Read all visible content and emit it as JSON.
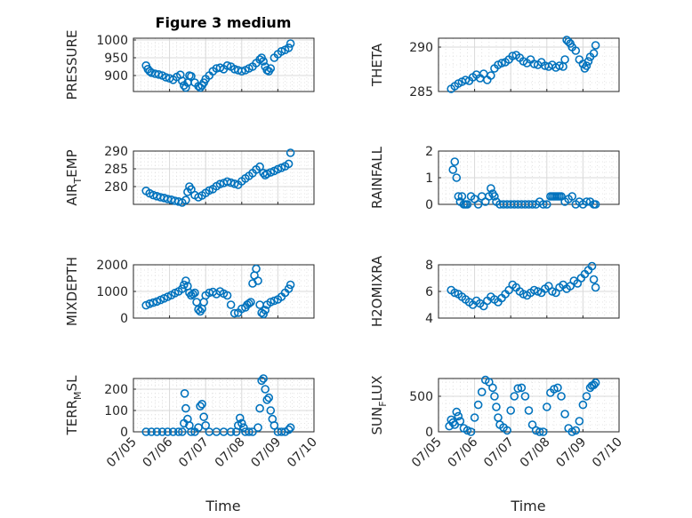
{
  "figure": {
    "title": "Figure 3 medium",
    "xlabel": "Time"
  },
  "chart_data": [
    {
      "type": "scatter",
      "title": "Figure 3 medium",
      "ylabel": "PRESSURE",
      "ylim": [
        855,
        1005
      ],
      "yticks": [
        900,
        950,
        1000
      ],
      "xlim": [
        0,
        5
      ],
      "xticks": [
        0,
        1,
        2,
        3,
        4,
        5
      ],
      "xticklabels": [
        "07/05",
        "07/06",
        "07/07",
        "07/08",
        "07/09",
        "07/10"
      ],
      "grid": true,
      "x": [
        0.35,
        0.4,
        0.45,
        0.5,
        0.6,
        0.7,
        0.8,
        0.9,
        1.0,
        1.1,
        1.2,
        1.3,
        1.35,
        1.4,
        1.45,
        1.5,
        1.55,
        1.6,
        1.7,
        1.8,
        1.85,
        1.9,
        1.95,
        2.0,
        2.1,
        2.2,
        2.3,
        2.4,
        2.5,
        2.6,
        2.7,
        2.8,
        2.9,
        3.0,
        3.1,
        3.2,
        3.3,
        3.4,
        3.5,
        3.55,
        3.6,
        3.65,
        3.7,
        3.75,
        3.8,
        3.9,
        4.0,
        4.1,
        4.2,
        4.3,
        4.35
      ],
      "y": [
        928,
        918,
        912,
        908,
        905,
        903,
        900,
        895,
        892,
        888,
        896,
        902,
        885,
        872,
        866,
        880,
        900,
        898,
        880,
        870,
        866,
        872,
        880,
        890,
        900,
        912,
        920,
        922,
        918,
        928,
        925,
        918,
        915,
        912,
        915,
        920,
        925,
        935,
        945,
        950,
        940,
        925,
        915,
        912,
        920,
        950,
        960,
        968,
        972,
        978,
        990
      ]
    },
    {
      "type": "scatter",
      "ylabel": "THETA",
      "ylim": [
        285,
        291
      ],
      "yticks": [
        285,
        290
      ],
      "xlim": [
        0,
        5
      ],
      "xticks": [
        0,
        1,
        2,
        3,
        4,
        5
      ],
      "xticklabels": [
        "07/05",
        "07/06",
        "07/07",
        "07/08",
        "07/09",
        "07/10"
      ],
      "grid": true,
      "x": [
        0.35,
        0.45,
        0.55,
        0.65,
        0.75,
        0.85,
        0.95,
        1.05,
        1.15,
        1.25,
        1.35,
        1.45,
        1.55,
        1.65,
        1.75,
        1.85,
        1.95,
        2.05,
        2.15,
        2.25,
        2.35,
        2.45,
        2.55,
        2.65,
        2.75,
        2.85,
        2.95,
        3.05,
        3.15,
        3.25,
        3.35,
        3.45,
        3.5,
        3.55,
        3.6,
        3.65,
        3.7,
        3.8,
        3.9,
        4.0,
        4.05,
        4.1,
        4.15,
        4.2,
        4.3,
        4.35
      ],
      "y": [
        285.3,
        285.6,
        285.9,
        286.1,
        286.3,
        286.2,
        286.6,
        286.9,
        286.5,
        287.0,
        286.3,
        286.8,
        287.6,
        288.0,
        288.2,
        288.3,
        288.6,
        289.0,
        289.1,
        288.8,
        288.4,
        288.2,
        288.6,
        288.1,
        288.0,
        288.3,
        287.9,
        287.8,
        288.0,
        287.7,
        287.9,
        287.8,
        288.6,
        290.8,
        290.6,
        290.4,
        290.0,
        289.6,
        288.6,
        288.1,
        287.6,
        287.9,
        288.4,
        288.9,
        289.3,
        290.2
      ]
    },
    {
      "type": "scatter",
      "ylabel": "AIR_TEMP",
      "ylim": [
        275,
        290
      ],
      "yticks": [
        280,
        285,
        290
      ],
      "xlim": [
        0,
        5
      ],
      "xticks": [
        0,
        1,
        2,
        3,
        4,
        5
      ],
      "xticklabels": [
        "07/05",
        "07/06",
        "07/07",
        "07/08",
        "07/09",
        "07/10"
      ],
      "grid": true,
      "x": [
        0.35,
        0.45,
        0.55,
        0.65,
        0.75,
        0.85,
        0.95,
        1.05,
        1.15,
        1.25,
        1.35,
        1.45,
        1.5,
        1.55,
        1.6,
        1.7,
        1.8,
        1.9,
        2.0,
        2.1,
        2.2,
        2.3,
        2.4,
        2.5,
        2.6,
        2.7,
        2.8,
        2.9,
        3.0,
        3.1,
        3.2,
        3.3,
        3.4,
        3.5,
        3.6,
        3.65,
        3.7,
        3.8,
        3.9,
        4.0,
        4.1,
        4.2,
        4.3,
        4.35
      ],
      "y": [
        278.8,
        278.1,
        277.6,
        277.3,
        277.0,
        276.8,
        276.5,
        276.3,
        276.0,
        275.8,
        275.5,
        276.2,
        278.5,
        280.0,
        279.2,
        277.6,
        277.0,
        277.5,
        278.2,
        278.9,
        279.3,
        280.1,
        280.7,
        281.0,
        281.4,
        281.1,
        280.8,
        280.5,
        281.5,
        282.3,
        283.0,
        283.8,
        284.8,
        285.6,
        283.8,
        283.2,
        283.6,
        284.0,
        284.4,
        284.9,
        285.3,
        285.7,
        286.4,
        289.5
      ]
    },
    {
      "type": "scatter",
      "ylabel": "RAINFALL",
      "ylim": [
        0,
        2
      ],
      "yticks": [
        0,
        1,
        2
      ],
      "xlim": [
        0,
        5
      ],
      "xticks": [
        0,
        1,
        2,
        3,
        4,
        5
      ],
      "xticklabels": [
        "07/05",
        "07/06",
        "07/07",
        "07/08",
        "07/09",
        "07/10"
      ],
      "grid": true,
      "x": [
        0.4,
        0.45,
        0.5,
        0.55,
        0.6,
        0.65,
        0.7,
        0.75,
        0.8,
        0.9,
        1.0,
        1.1,
        1.2,
        1.3,
        1.4,
        1.45,
        1.5,
        1.55,
        1.6,
        1.7,
        1.8,
        1.9,
        2.0,
        2.1,
        2.2,
        2.3,
        2.4,
        2.5,
        2.6,
        2.7,
        2.8,
        2.9,
        3.0,
        3.1,
        3.15,
        3.2,
        3.25,
        3.3,
        3.35,
        3.4,
        3.5,
        3.6,
        3.7,
        3.8,
        3.9,
        4.0,
        4.1,
        4.2,
        4.3,
        4.35
      ],
      "y": [
        1.3,
        1.6,
        1.0,
        0.3,
        0.1,
        0.3,
        0.0,
        0.0,
        0.0,
        0.3,
        0.2,
        0.0,
        0.3,
        0.1,
        0.3,
        0.6,
        0.4,
        0.3,
        0.1,
        0.0,
        0.0,
        0.0,
        0.0,
        0.0,
        0.0,
        0.0,
        0.0,
        0.0,
        0.0,
        0.0,
        0.1,
        0.0,
        0.0,
        0.3,
        0.3,
        0.3,
        0.3,
        0.3,
        0.3,
        0.3,
        0.1,
        0.2,
        0.3,
        0.0,
        0.1,
        0.0,
        0.1,
        0.1,
        0.0,
        0.0
      ]
    },
    {
      "type": "scatter",
      "ylabel": "MIXDEPTH",
      "ylim": [
        0,
        2000
      ],
      "yticks": [
        0,
        1000,
        2000
      ],
      "xlim": [
        0,
        5
      ],
      "xticks": [
        0,
        1,
        2,
        3,
        4,
        5
      ],
      "xticklabels": [
        "07/05",
        "07/06",
        "07/07",
        "07/08",
        "07/09",
        "07/10"
      ],
      "grid": true,
      "x": [
        0.35,
        0.45,
        0.55,
        0.65,
        0.75,
        0.85,
        0.95,
        1.05,
        1.15,
        1.25,
        1.35,
        1.4,
        1.45,
        1.5,
        1.55,
        1.6,
        1.65,
        1.7,
        1.75,
        1.8,
        1.85,
        1.9,
        1.95,
        2.0,
        2.1,
        2.2,
        2.3,
        2.4,
        2.5,
        2.6,
        2.7,
        2.8,
        2.9,
        3.0,
        3.1,
        3.15,
        3.2,
        3.25,
        3.3,
        3.35,
        3.4,
        3.45,
        3.5,
        3.55,
        3.6,
        3.65,
        3.7,
        3.8,
        3.9,
        4.0,
        4.1,
        4.2,
        4.3,
        4.35
      ],
      "y": [
        480,
        540,
        580,
        620,
        680,
        740,
        800,
        860,
        940,
        1000,
        1100,
        1250,
        1400,
        1200,
        950,
        850,
        900,
        950,
        600,
        320,
        250,
        350,
        600,
        850,
        950,
        980,
        900,
        1000,
        920,
        850,
        500,
        180,
        200,
        350,
        400,
        500,
        550,
        600,
        1300,
        1600,
        1850,
        1400,
        500,
        200,
        150,
        300,
        500,
        600,
        650,
        700,
        800,
        950,
        1100,
        1250
      ]
    },
    {
      "type": "scatter",
      "ylabel": "H2OMIXRA",
      "ylim": [
        4,
        8
      ],
      "yticks": [
        4,
        6,
        8
      ],
      "xlim": [
        0,
        5
      ],
      "xticks": [
        0,
        1,
        2,
        3,
        4,
        5
      ],
      "xticklabels": [
        "07/05",
        "07/06",
        "07/07",
        "07/08",
        "07/09",
        "07/10"
      ],
      "grid": true,
      "x": [
        0.35,
        0.45,
        0.55,
        0.65,
        0.75,
        0.85,
        0.95,
        1.05,
        1.15,
        1.25,
        1.35,
        1.45,
        1.55,
        1.65,
        1.75,
        1.85,
        1.95,
        2.05,
        2.15,
        2.25,
        2.35,
        2.45,
        2.55,
        2.65,
        2.75,
        2.85,
        2.95,
        3.05,
        3.15,
        3.25,
        3.35,
        3.45,
        3.55,
        3.65,
        3.75,
        3.85,
        3.95,
        4.05,
        4.15,
        4.25,
        4.3,
        4.35
      ],
      "y": [
        6.1,
        5.9,
        5.8,
        5.6,
        5.4,
        5.2,
        5.0,
        5.3,
        5.1,
        4.9,
        5.3,
        5.6,
        5.4,
        5.2,
        5.5,
        5.8,
        6.1,
        6.5,
        6.3,
        6.0,
        5.8,
        5.7,
        5.9,
        6.1,
        6.0,
        5.9,
        6.2,
        6.4,
        6.0,
        5.9,
        6.3,
        6.5,
        6.2,
        6.4,
        6.8,
        6.6,
        7.0,
        7.3,
        7.6,
        7.9,
        6.9,
        6.3
      ]
    },
    {
      "type": "scatter",
      "ylabel": "TERR_MSL",
      "ylim": [
        0,
        250
      ],
      "yticks": [
        0,
        100,
        200
      ],
      "xlim": [
        0,
        5
      ],
      "xticks": [
        0,
        1,
        2,
        3,
        4,
        5
      ],
      "xticklabels": [
        "07/05",
        "07/06",
        "07/07",
        "07/08",
        "07/09",
        "07/10"
      ],
      "grid": true,
      "x": [
        0.35,
        0.5,
        0.65,
        0.8,
        0.95,
        1.1,
        1.25,
        1.35,
        1.4,
        1.42,
        1.45,
        1.5,
        1.55,
        1.6,
        1.7,
        1.8,
        1.85,
        1.9,
        1.95,
        2.0,
        2.1,
        2.3,
        2.5,
        2.7,
        2.85,
        2.9,
        2.95,
        3.0,
        3.05,
        3.1,
        3.2,
        3.3,
        3.45,
        3.5,
        3.55,
        3.6,
        3.65,
        3.7,
        3.75,
        3.8,
        3.85,
        3.9,
        4.0,
        4.1,
        4.2,
        4.3,
        4.35
      ],
      "y": [
        0,
        0,
        0,
        0,
        0,
        0,
        0,
        0,
        40,
        180,
        110,
        60,
        30,
        0,
        0,
        20,
        120,
        130,
        70,
        30,
        0,
        0,
        0,
        0,
        0,
        30,
        65,
        40,
        20,
        0,
        0,
        0,
        20,
        110,
        240,
        250,
        200,
        150,
        160,
        100,
        60,
        30,
        0,
        0,
        0,
        10,
        20
      ]
    },
    {
      "type": "scatter",
      "ylabel": "SUN_FLUX",
      "ylim": [
        0,
        750
      ],
      "yticks": [
        0,
        500
      ],
      "xlim": [
        0,
        5
      ],
      "xticks": [
        0,
        1,
        2,
        3,
        4,
        5
      ],
      "xticklabels": [
        "07/05",
        "07/06",
        "07/07",
        "07/08",
        "07/09",
        "07/10"
      ],
      "grid": true,
      "x": [
        0.3,
        0.35,
        0.4,
        0.45,
        0.5,
        0.55,
        0.6,
        0.7,
        0.8,
        0.9,
        1.0,
        1.1,
        1.2,
        1.3,
        1.4,
        1.5,
        1.55,
        1.6,
        1.65,
        1.7,
        1.8,
        1.9,
        2.0,
        2.1,
        2.2,
        2.3,
        2.4,
        2.5,
        2.6,
        2.7,
        2.8,
        2.9,
        3.0,
        3.1,
        3.2,
        3.3,
        3.4,
        3.5,
        3.6,
        3.7,
        3.8,
        3.9,
        4.0,
        4.1,
        4.2,
        4.25,
        4.3,
        4.35
      ],
      "y": [
        80,
        170,
        130,
        100,
        280,
        220,
        150,
        50,
        20,
        0,
        200,
        380,
        560,
        730,
        700,
        620,
        500,
        350,
        200,
        100,
        60,
        20,
        300,
        500,
        610,
        620,
        500,
        300,
        100,
        20,
        0,
        0,
        350,
        550,
        600,
        620,
        500,
        250,
        50,
        0,
        20,
        150,
        380,
        500,
        620,
        650,
        660,
        690
      ]
    }
  ]
}
